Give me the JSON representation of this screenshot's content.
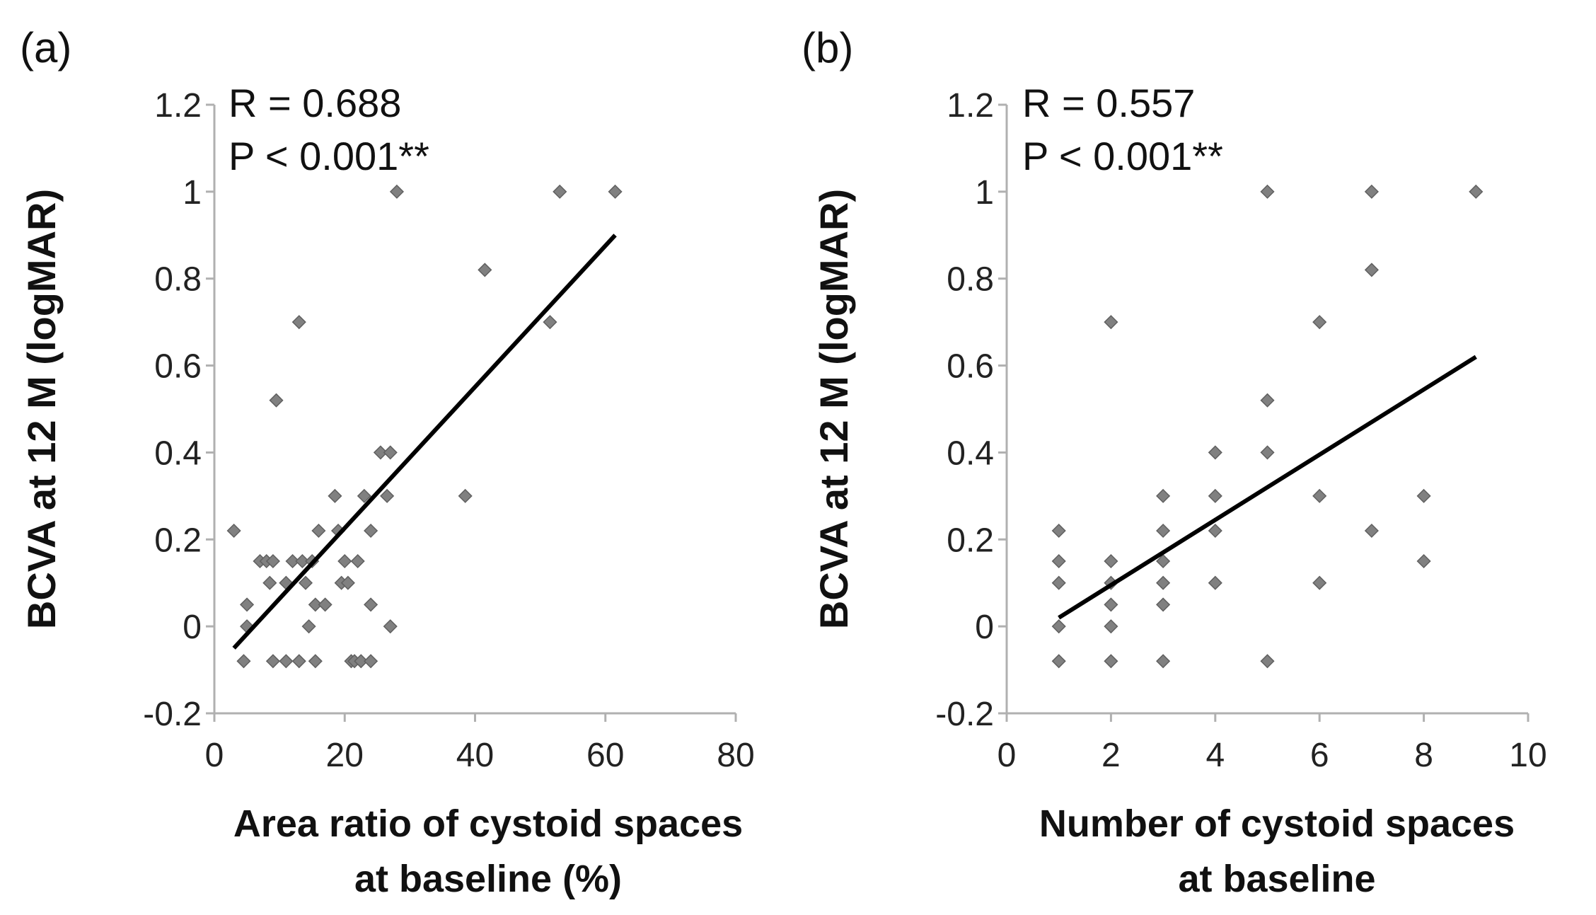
{
  "chart_data": [
    {
      "type": "scatter",
      "panel_label": "(a)",
      "title": "",
      "xlabel_lines": [
        "Area ratio of cystoid spaces",
        "at baseline (%)"
      ],
      "ylabel": "BCVA at 12 M (logMAR)",
      "xlim": [
        0,
        80
      ],
      "ylim": [
        -0.2,
        1.2
      ],
      "x_ticks": [
        0,
        20,
        40,
        60,
        80
      ],
      "y_ticks": [
        -0.2,
        0,
        0.2,
        0.4,
        0.6,
        0.8,
        1,
        1.2
      ],
      "x_tick_labels": [
        "0",
        "20",
        "40",
        "60",
        "80"
      ],
      "y_tick_labels": [
        "-0.2",
        "0",
        "0.2",
        "0.4",
        "0.6",
        "0.8",
        "1",
        "1.2"
      ],
      "annotations": [
        "R = 0.688",
        "P < 0.001**"
      ],
      "trendline": {
        "x": [
          3,
          61.5
        ],
        "y": [
          -0.05,
          0.9
        ]
      },
      "points": [
        {
          "x": 3,
          "y": 0.22
        },
        {
          "x": 4.5,
          "y": -0.08
        },
        {
          "x": 5,
          "y": 0.05
        },
        {
          "x": 5,
          "y": 0
        },
        {
          "x": 7,
          "y": 0.15
        },
        {
          "x": 8,
          "y": 0.15
        },
        {
          "x": 8.5,
          "y": 0.1
        },
        {
          "x": 9,
          "y": 0.15
        },
        {
          "x": 9.5,
          "y": 0.52
        },
        {
          "x": 9,
          "y": -0.08
        },
        {
          "x": 11,
          "y": 0.1
        },
        {
          "x": 11,
          "y": -0.08
        },
        {
          "x": 12,
          "y": 0.15
        },
        {
          "x": 13,
          "y": 0.7
        },
        {
          "x": 13,
          "y": -0.08
        },
        {
          "x": 13.5,
          "y": 0.15
        },
        {
          "x": 14,
          "y": 0.1
        },
        {
          "x": 14.5,
          "y": 0
        },
        {
          "x": 15,
          "y": 0.15
        },
        {
          "x": 15.5,
          "y": 0.05
        },
        {
          "x": 15.5,
          "y": -0.08
        },
        {
          "x": 16,
          "y": 0.22
        },
        {
          "x": 17,
          "y": 0.05
        },
        {
          "x": 18.5,
          "y": 0.3
        },
        {
          "x": 19,
          "y": 0.22
        },
        {
          "x": 19.5,
          "y": 0.1
        },
        {
          "x": 20,
          "y": 0.15
        },
        {
          "x": 20.5,
          "y": 0.1
        },
        {
          "x": 21,
          "y": -0.08
        },
        {
          "x": 21.5,
          "y": -0.08
        },
        {
          "x": 22,
          "y": 0.15
        },
        {
          "x": 22.5,
          "y": -0.08
        },
        {
          "x": 23,
          "y": 0.3
        },
        {
          "x": 24,
          "y": 0.22
        },
        {
          "x": 24,
          "y": 0.05
        },
        {
          "x": 24,
          "y": -0.08
        },
        {
          "x": 25.5,
          "y": 0.4
        },
        {
          "x": 26.5,
          "y": 0.3
        },
        {
          "x": 27,
          "y": 0.4
        },
        {
          "x": 27,
          "y": 0
        },
        {
          "x": 28,
          "y": 1
        },
        {
          "x": 38.5,
          "y": 0.3
        },
        {
          "x": 41.5,
          "y": 0.82
        },
        {
          "x": 51.5,
          "y": 0.7
        },
        {
          "x": 53,
          "y": 1
        },
        {
          "x": 61.5,
          "y": 1
        }
      ]
    },
    {
      "type": "scatter",
      "panel_label": "(b)",
      "title": "",
      "xlabel_lines": [
        "Number of cystoid spaces",
        "at baseline"
      ],
      "ylabel": "BCVA at 12 M (logMAR)",
      "xlim": [
        0,
        10
      ],
      "ylim": [
        -0.2,
        1.2
      ],
      "x_ticks": [
        0,
        2,
        4,
        6,
        8,
        10
      ],
      "y_ticks": [
        -0.2,
        0,
        0.2,
        0.4,
        0.6,
        0.8,
        1,
        1.2
      ],
      "x_tick_labels": [
        "0",
        "2",
        "4",
        "6",
        "8",
        "10"
      ],
      "y_tick_labels": [
        "-0.2",
        "0",
        "0.2",
        "0.4",
        "0.6",
        "0.8",
        "1",
        "1.2"
      ],
      "annotations": [
        "R = 0.557",
        "P < 0.001**"
      ],
      "trendline": {
        "x": [
          1,
          9
        ],
        "y": [
          0.02,
          0.62
        ]
      },
      "points": [
        {
          "x": 1,
          "y": 0.22
        },
        {
          "x": 1,
          "y": 0.15
        },
        {
          "x": 1,
          "y": 0.1
        },
        {
          "x": 1,
          "y": 0
        },
        {
          "x": 1,
          "y": -0.08
        },
        {
          "x": 2,
          "y": 0.7
        },
        {
          "x": 2,
          "y": 0.15
        },
        {
          "x": 2,
          "y": 0.1
        },
        {
          "x": 2,
          "y": 0.05
        },
        {
          "x": 2,
          "y": 0
        },
        {
          "x": 2,
          "y": -0.08
        },
        {
          "x": 3,
          "y": 0.3
        },
        {
          "x": 3,
          "y": 0.22
        },
        {
          "x": 3,
          "y": 0.15
        },
        {
          "x": 3,
          "y": 0.1
        },
        {
          "x": 3,
          "y": 0.05
        },
        {
          "x": 3,
          "y": -0.08
        },
        {
          "x": 4,
          "y": 0.4
        },
        {
          "x": 4,
          "y": 0.3
        },
        {
          "x": 4,
          "y": 0.22
        },
        {
          "x": 4,
          "y": 0.1
        },
        {
          "x": 5,
          "y": 1
        },
        {
          "x": 5,
          "y": 0.52
        },
        {
          "x": 5,
          "y": 0.4
        },
        {
          "x": 5,
          "y": -0.08
        },
        {
          "x": 6,
          "y": 0.7
        },
        {
          "x": 6,
          "y": 0.3
        },
        {
          "x": 6,
          "y": 0.1
        },
        {
          "x": 7,
          "y": 1
        },
        {
          "x": 7,
          "y": 0.82
        },
        {
          "x": 7,
          "y": 0.22
        },
        {
          "x": 8,
          "y": 0.3
        },
        {
          "x": 8,
          "y": 0.15
        },
        {
          "x": 9,
          "y": 1
        }
      ]
    }
  ]
}
